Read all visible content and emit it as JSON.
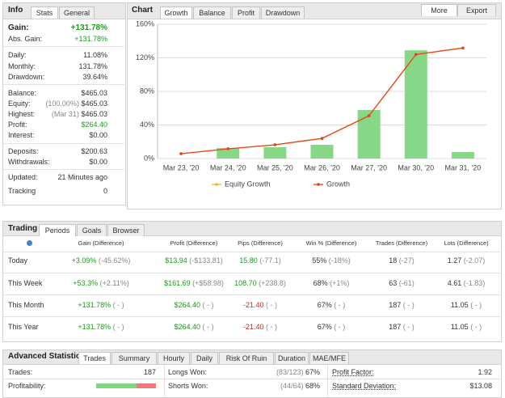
{
  "info": {
    "title": "Info",
    "tabs": [
      "Stats",
      "General"
    ],
    "gain_label": "Gain:",
    "gain": "+131.78%",
    "abs_gain_label": "Abs. Gain:",
    "abs_gain": "+131.78%",
    "groups": [
      [
        {
          "label": "Daily:",
          "value": "11.08%"
        },
        {
          "label": "Monthly:",
          "value": "131.78%"
        },
        {
          "label": "Drawdown:",
          "value": "39.64%"
        }
      ],
      [
        {
          "label": "Balance:",
          "value": "$465.03"
        },
        {
          "label": "Equity:",
          "note": "(100.00%)",
          "value": "$465.03"
        },
        {
          "label": "Highest:",
          "note": "(Mar 31)",
          "value": "$465.03"
        },
        {
          "label": "Profit:",
          "value": "$264.40",
          "color": "#1a9c1a"
        },
        {
          "label": "Interest:",
          "value": "$0.00"
        }
      ],
      [
        {
          "label": "Deposits:",
          "value": "$200.63"
        },
        {
          "label": "Withdrawals:",
          "value": "$0.00"
        }
      ],
      [
        {
          "label": "Updated:",
          "value": "21 Minutes ago"
        },
        {
          "label": "Tracking",
          "value": "0"
        }
      ]
    ]
  },
  "chart_panel": {
    "title": "Chart",
    "tabs": [
      "Growth",
      "Balance",
      "Profit",
      "Drawdown"
    ],
    "buttons": [
      "More",
      "Export"
    ],
    "chart": {
      "type": "bar_line",
      "categories": [
        "Mar 23, '20",
        "Mar 24, '20",
        "Mar 25, '20",
        "Mar 26, '20",
        "Mar 27, '20",
        "Mar 30, '20",
        "Mar 31, '20"
      ],
      "ylim": [
        0,
        160
      ],
      "yticks": [
        {
          "value": 0,
          "label": "0%"
        },
        {
          "value": 40,
          "label": "40%"
        },
        {
          "value": 80,
          "label": "80%"
        },
        {
          "value": 120,
          "label": "120%"
        },
        {
          "value": 160,
          "label": "160%"
        }
      ],
      "grid": true,
      "bars": {
        "color": "#86d886",
        "values": [
          0,
          12.5,
          13.5,
          16.4,
          57.8,
          129,
          7.7
        ]
      },
      "series": [
        {
          "name": "Equity Growth",
          "color": "#f0b818",
          "values": [
            5.8,
            11.6,
            16.4,
            24,
            51,
            124,
            131.78
          ]
        },
        {
          "name": "Growth",
          "color": "#e8401c",
          "values": [
            5.8,
            11.6,
            16.4,
            24,
            51,
            124,
            131.78
          ]
        }
      ]
    }
  },
  "trading": {
    "title": "Trading",
    "tabs": [
      "Periods",
      "Goals",
      "Browser"
    ],
    "headers": [
      "Gain (Difference)",
      "Profit (Difference)",
      "Pips (Difference)",
      "Win % (Difference)",
      "Trades (Difference)",
      "Lots (Difference)"
    ],
    "rows": [
      {
        "period": "Today",
        "cells": [
          [
            "+3.09%",
            "(-45.62%)"
          ],
          [
            "$13.94",
            "(-$133.81)"
          ],
          [
            "15.80",
            "(-77.1)"
          ],
          [
            "55%",
            "(-18%)"
          ],
          [
            "18",
            "(-27)"
          ],
          [
            "1.27",
            "(-2.07)"
          ]
        ]
      },
      {
        "period": "This Week",
        "cells": [
          [
            "+53.3%",
            "(+2.11%)"
          ],
          [
            "$161.69",
            "(+$58.98)"
          ],
          [
            "108.70",
            "(+238.8)"
          ],
          [
            "68%",
            "(+1%)"
          ],
          [
            "63",
            "(-61)"
          ],
          [
            "4.61",
            "(-1.83)"
          ]
        ]
      },
      {
        "period": "This Month",
        "cells": [
          [
            "+131.78%",
            "( - )"
          ],
          [
            "$264.40",
            "( - )"
          ],
          [
            "-21.40",
            "( - )"
          ],
          [
            "67%",
            "( - )"
          ],
          [
            "187",
            "( - )"
          ],
          [
            "11.05",
            "( - )"
          ]
        ]
      },
      {
        "period": "This Year",
        "cells": [
          [
            "+131.78%",
            "( - )"
          ],
          [
            "$264.40",
            "( - )"
          ],
          [
            "-21.40",
            "( - )"
          ],
          [
            "67%",
            "( - )"
          ],
          [
            "187",
            "( - )"
          ],
          [
            "11.05",
            "( - )"
          ]
        ]
      }
    ]
  },
  "advanced": {
    "title": "Advanced Statistics",
    "tabs": [
      "Trades",
      "Summary",
      "Hourly",
      "Daily",
      "Risk Of Ruin",
      "Duration",
      "MAE/MFE"
    ],
    "rows": [
      [
        {
          "label": "Trades:",
          "value": "187"
        },
        {
          "label": "Longs Won:",
          "note": "(83/123)",
          "value": "67%"
        },
        {
          "label": "Profit Factor:",
          "value": "1.92"
        }
      ],
      [
        {
          "label": "Profitability:",
          "bar": 67
        },
        {
          "label": "Shorts Won:",
          "note": "(44/64)",
          "value": "68%"
        },
        {
          "label": "Standard Deviation:",
          "value": "$13.08"
        }
      ]
    ]
  }
}
